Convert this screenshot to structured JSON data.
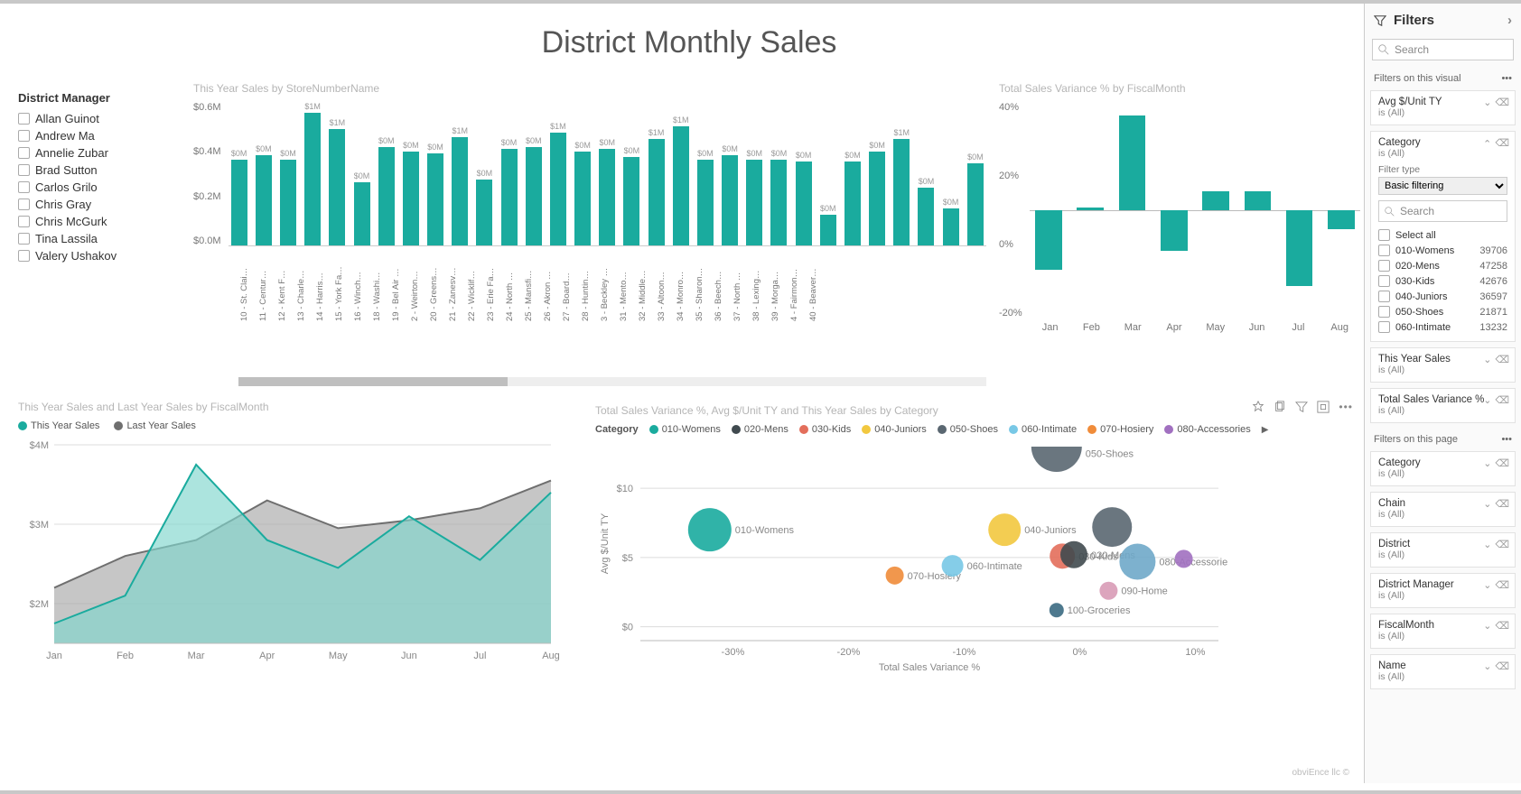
{
  "title": "District Monthly Sales",
  "colors": {
    "primary": "#1aab9e",
    "gray": "#7a7a7a",
    "grid": "#dcdcdc",
    "text_muted": "#b5b5b5"
  },
  "slicer": {
    "title": "District Manager",
    "items": [
      "Allan Guinot",
      "Andrew Ma",
      "Annelie Zubar",
      "Brad Sutton",
      "Carlos Grilo",
      "Chris Gray",
      "Chris McGurk",
      "Tina Lassila",
      "Valery Ushakov"
    ]
  },
  "stores_chart": {
    "title": "This Year Sales by StoreNumberName",
    "type": "bar",
    "ylim": [
      0,
      0.7
    ],
    "yticks": [
      "$0.0M",
      "$0.2M",
      "$0.4M",
      "$0.6M"
    ],
    "bar_color": "#1aab9e",
    "labels": [
      "10 - St. Clai…",
      "11 - Centur…",
      "12 - Kent F…",
      "13 - Charle…",
      "14 - Harris…",
      "15 - York Fa…",
      "16 - Winch…",
      "18 - Washi…",
      "19 - Bel Air …",
      "2 - Weirton…",
      "20 - Greens…",
      "21 - Zanesv…",
      "22 - Wicklif…",
      "23 - Erie Fa…",
      "24 - North …",
      "25 - Mansfi…",
      "26 - Akron …",
      "27 - Board…",
      "28 - Huntin…",
      "3 - Beckley …",
      "31 - Mento…",
      "32 - Middle…",
      "33 - Altoon…",
      "34 - Monro…",
      "35 - Sharon…",
      "36 - Beech…",
      "37 - North …",
      "38 - Lexing…",
      "39 - Morga…",
      "4 - Fairmon…",
      "40 - Beaver…"
    ],
    "values": [
      0.42,
      0.44,
      0.42,
      0.65,
      0.57,
      0.31,
      0.48,
      0.46,
      0.45,
      0.53,
      0.32,
      0.47,
      0.48,
      0.55,
      0.46,
      0.47,
      0.43,
      0.52,
      0.58,
      0.42,
      0.44,
      0.42,
      0.42,
      0.41,
      0.15,
      0.41,
      0.46,
      0.52,
      0.28,
      0.18,
      0.4
    ],
    "data_labels": [
      "$0M",
      "$0M",
      "$0M",
      "$1M",
      "$1M",
      "$0M",
      "$0M",
      "$0M",
      "$0M",
      "$1M",
      "$0M",
      "$0M",
      "$0M",
      "$1M",
      "$0M",
      "$0M",
      "$0M",
      "$1M",
      "$1M",
      "$0M",
      "$0M",
      "$0M",
      "$0M",
      "$0M",
      "$0M",
      "$0M",
      "$0M",
      "$1M",
      "$0M",
      "$0M",
      "$0M"
    ],
    "scroll_thumb_pct": 36
  },
  "variance_chart": {
    "title": "Total Sales Variance % by FiscalMonth",
    "type": "bar",
    "labels": [
      "Jan",
      "Feb",
      "Mar",
      "Apr",
      "May",
      "Jun",
      "Jul",
      "Aug"
    ],
    "values": [
      -22,
      1,
      35,
      -15,
      7,
      7,
      -28,
      -7
    ],
    "ylim": [
      -40,
      40
    ],
    "yticks": [
      "40%",
      "20%",
      "0%",
      "-20%"
    ],
    "bar_color": "#1aab9e"
  },
  "area_chart": {
    "title": "This Year Sales and Last Year Sales by FiscalMonth",
    "type": "area",
    "series": [
      {
        "name": "This Year Sales",
        "color": "#1aab9e",
        "fill": "#7fd6cd",
        "values": [
          1.75,
          2.1,
          3.75,
          2.8,
          2.45,
          3.1,
          2.55,
          3.4
        ]
      },
      {
        "name": "Last Year Sales",
        "color": "#6f6f6f",
        "fill": "#a8a8a8",
        "values": [
          2.2,
          2.6,
          2.8,
          3.3,
          2.95,
          3.05,
          3.2,
          3.55
        ]
      }
    ],
    "xlabels": [
      "Jan",
      "Feb",
      "Mar",
      "Apr",
      "May",
      "Jun",
      "Jul",
      "Aug"
    ],
    "yticks": [
      "$4M",
      "$3M",
      "$2M"
    ],
    "ylim": [
      1.5,
      4.0
    ]
  },
  "scatter": {
    "title": "Total Sales Variance %, Avg $/Unit TY and This Year Sales by Category",
    "legend_label": "Category",
    "toolbar": [
      "pin",
      "copy",
      "filter",
      "focus",
      "more"
    ],
    "xlabel": "Total Sales Variance %",
    "ylabel": "Avg $/Unit TY",
    "xticks": [
      -30,
      -20,
      -10,
      0,
      10
    ],
    "yticks": [
      0,
      5,
      10
    ],
    "legend": [
      {
        "name": "010-Womens",
        "color": "#1aab9e"
      },
      {
        "name": "020-Mens",
        "color": "#404a4f"
      },
      {
        "name": "030-Kids",
        "color": "#e36e5b"
      },
      {
        "name": "040-Juniors",
        "color": "#f2c83f"
      },
      {
        "name": "050-Shoes",
        "color": "#5a6771"
      },
      {
        "name": "060-Intimate",
        "color": "#78c8e6"
      },
      {
        "name": "070-Hosiery",
        "color": "#f08c3a"
      },
      {
        "name": "080-Accessories",
        "color": "#a170c0"
      }
    ],
    "bubbles": [
      {
        "label": "010-Womens",
        "x": -32,
        "y": 7.0,
        "r": 24,
        "color": "#1aab9e"
      },
      {
        "label": "070-Hosiery",
        "x": -16,
        "y": 3.7,
        "r": 10,
        "color": "#f08c3a"
      },
      {
        "label": "060-Intimate",
        "x": -11,
        "y": 4.4,
        "r": 12,
        "color": "#78c8e6"
      },
      {
        "label": "040-Juniors",
        "x": -6.5,
        "y": 7.0,
        "r": 18,
        "color": "#f2c83f"
      },
      {
        "label": "030-Kids",
        "x": -1.5,
        "y": 5.1,
        "r": 14,
        "color": "#e36e5b"
      },
      {
        "label": "020-Mens",
        "x": -0.5,
        "y": 5.2,
        "r": 15,
        "color": "#404a4f"
      },
      {
        "label": "050-Shoes",
        "x": -2,
        "y": 12.5,
        "r": 28,
        "color": "#5a6771",
        "half": true
      },
      {
        "label": "100-Groceries",
        "x": -2,
        "y": 1.2,
        "r": 8,
        "color": "#3b6a82"
      },
      {
        "label": "090-Home",
        "x": 2.5,
        "y": 2.6,
        "r": 10,
        "color": "#d89bb6"
      },
      {
        "label": "050-Shoes-dark",
        "hidden_label": "",
        "x": 2.8,
        "y": 7.2,
        "r": 22,
        "color": "#5a6771",
        "label_override": ""
      },
      {
        "label": "080-Accessories",
        "x": 5,
        "y": 4.7,
        "r": 20,
        "color": "#6fa9c9"
      },
      {
        "label": "080-Acc-small",
        "x": 9,
        "y": 4.9,
        "r": 10,
        "color": "#a170c0",
        "label_override": ""
      }
    ]
  },
  "filters": {
    "header": "Filters",
    "search_placeholder": "Search",
    "sections": {
      "visual": "Filters on this visual",
      "page": "Filters on this page"
    },
    "visual_cards": [
      {
        "title": "Avg $/Unit TY",
        "sub": "is (All)",
        "expanded": false
      },
      {
        "title": "Category",
        "sub": "is (All)",
        "expanded": true,
        "filter_type_label": "Filter type",
        "filter_type": "Basic filtering",
        "search_placeholder": "Search",
        "options": [
          {
            "label": "Select all",
            "count": ""
          },
          {
            "label": "010-Womens",
            "count": "39706"
          },
          {
            "label": "020-Mens",
            "count": "47258"
          },
          {
            "label": "030-Kids",
            "count": "42676"
          },
          {
            "label": "040-Juniors",
            "count": "36597"
          },
          {
            "label": "050-Shoes",
            "count": "21871"
          },
          {
            "label": "060-Intimate",
            "count": "13232"
          }
        ]
      },
      {
        "title": "This Year Sales",
        "sub": "is (All)",
        "expanded": false
      },
      {
        "title": "Total Sales Variance %",
        "sub": "is (All)",
        "expanded": false
      }
    ],
    "page_cards": [
      {
        "title": "Category",
        "sub": "is (All)"
      },
      {
        "title": "Chain",
        "sub": "is (All)"
      },
      {
        "title": "District",
        "sub": "is (All)"
      },
      {
        "title": "District Manager",
        "sub": "is (All)"
      },
      {
        "title": "FiscalMonth",
        "sub": "is (All)"
      },
      {
        "title": "Name",
        "sub": "is (All)"
      }
    ]
  },
  "footer_note": "obviEnce llc ©"
}
